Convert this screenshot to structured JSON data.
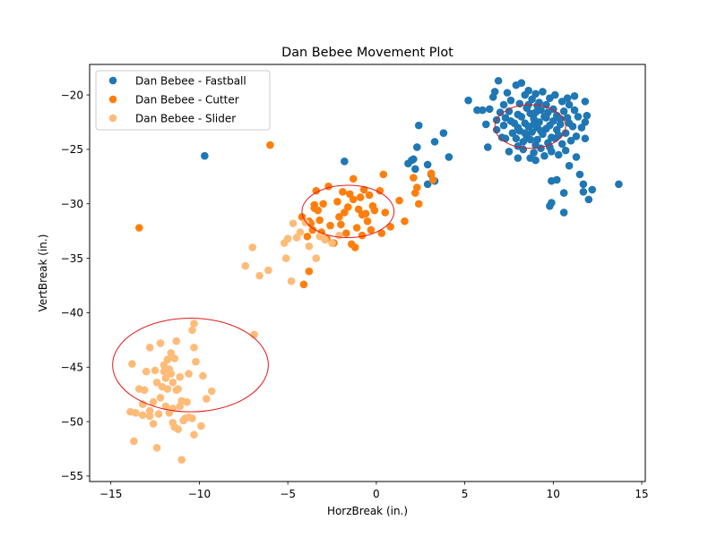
{
  "chart_data": {
    "type": "scatter",
    "title": "Dan Bebee Movement Plot",
    "xlabel": "HorzBreak (in.)",
    "ylabel": "VertBreak (in.)",
    "xlim": [
      -16.2,
      15.2
    ],
    "ylim": [
      -55.5,
      -17.2
    ],
    "xticks": [
      -15,
      -10,
      -5,
      0,
      5,
      10,
      15
    ],
    "yticks": [
      -55,
      -50,
      -45,
      -40,
      -35,
      -30,
      -25,
      -20
    ],
    "grid": false,
    "legend": "top-left",
    "series": [
      {
        "name": "Dan Bebee - Fastball",
        "color": "#1f77b4",
        "points": [
          [
            -9.7,
            -25.6
          ],
          [
            -1.8,
            -26.1
          ],
          [
            1.8,
            -26.3
          ],
          [
            2.0,
            -26.0
          ],
          [
            2.2,
            -26.8
          ],
          [
            2.1,
            -25.9
          ],
          [
            2.3,
            -24.8
          ],
          [
            2.4,
            -22.8
          ],
          [
            2.9,
            -26.4
          ],
          [
            2.9,
            -28.2
          ],
          [
            3.1,
            -27.3
          ],
          [
            3.3,
            -24.3
          ],
          [
            3.3,
            -27.9
          ],
          [
            3.8,
            -23.5
          ],
          [
            4.1,
            -25.7
          ],
          [
            5.2,
            -20.5
          ],
          [
            5.7,
            -21.4
          ],
          [
            6.0,
            -21.4
          ],
          [
            6.2,
            -22.7
          ],
          [
            6.3,
            -24.8
          ],
          [
            6.4,
            -21.3
          ],
          [
            6.6,
            -20.2
          ],
          [
            6.7,
            -19.7
          ],
          [
            6.8,
            -22.3
          ],
          [
            6.9,
            -18.7
          ],
          [
            7.0,
            -21.6
          ],
          [
            7.1,
            -23.9
          ],
          [
            7.2,
            -20.9
          ],
          [
            7.3,
            -22.1
          ],
          [
            7.3,
            -24.0
          ],
          [
            7.4,
            -19.8
          ],
          [
            7.5,
            -25.2
          ],
          [
            7.5,
            -21.5
          ],
          [
            7.6,
            -20.5
          ],
          [
            7.7,
            -23.5
          ],
          [
            7.8,
            -22.6
          ],
          [
            7.9,
            -19.1
          ],
          [
            8.0,
            -24.7
          ],
          [
            8.0,
            -21.8
          ],
          [
            8.1,
            -20.8
          ],
          [
            8.1,
            -23.3
          ],
          [
            8.2,
            -18.9
          ],
          [
            8.2,
            -22.0
          ],
          [
            8.3,
            -25.0
          ],
          [
            8.3,
            -24.3
          ],
          [
            8.4,
            -20.0
          ],
          [
            8.4,
            -22.6
          ],
          [
            8.5,
            -23.8
          ],
          [
            8.5,
            -21.2
          ],
          [
            8.6,
            -19.6
          ],
          [
            8.6,
            -22.9
          ],
          [
            8.7,
            -24.1
          ],
          [
            8.7,
            -21.7
          ],
          [
            8.8,
            -20.4
          ],
          [
            8.8,
            -23.4
          ],
          [
            8.9,
            -25.3
          ],
          [
            8.9,
            -22.2
          ],
          [
            9.0,
            -19.9
          ],
          [
            9.0,
            -24.6
          ],
          [
            9.1,
            -21.0
          ],
          [
            9.1,
            -23.0
          ],
          [
            9.2,
            -20.7
          ],
          [
            9.2,
            -22.5
          ],
          [
            9.3,
            -24.9
          ],
          [
            9.3,
            -21.4
          ],
          [
            9.4,
            -19.7
          ],
          [
            9.4,
            -23.6
          ],
          [
            9.5,
            -22.0
          ],
          [
            9.5,
            -25.6
          ],
          [
            9.6,
            -20.9
          ],
          [
            9.6,
            -23.1
          ],
          [
            9.7,
            -24.4
          ],
          [
            9.7,
            -21.6
          ],
          [
            9.8,
            -20.3
          ],
          [
            9.8,
            -22.8
          ],
          [
            9.9,
            -23.9
          ],
          [
            9.9,
            -25.2
          ],
          [
            10.0,
            -21.3
          ],
          [
            10.0,
            -22.4
          ],
          [
            10.1,
            -20.0
          ],
          [
            10.1,
            -24.0
          ],
          [
            10.2,
            -23.2
          ],
          [
            10.2,
            -21.9
          ],
          [
            10.3,
            -25.5
          ],
          [
            10.4,
            -22.7
          ],
          [
            10.5,
            -20.6
          ],
          [
            10.5,
            -24.5
          ],
          [
            10.6,
            -21.5
          ],
          [
            10.7,
            -23.5
          ],
          [
            10.7,
            -25.1
          ],
          [
            10.8,
            -22.1
          ],
          [
            10.9,
            -20.9
          ],
          [
            11.0,
            -24.2
          ],
          [
            11.1,
            -22.9
          ],
          [
            11.2,
            -21.4
          ],
          [
            11.3,
            -23.8
          ],
          [
            11.3,
            -25.7
          ],
          [
            11.4,
            -22.0
          ],
          [
            11.8,
            -22.5
          ],
          [
            11.8,
            -24.0
          ],
          [
            11.8,
            -20.6
          ],
          [
            11.6,
            -23.0
          ],
          [
            11.9,
            -21.9
          ],
          [
            9.0,
            -26.0
          ],
          [
            8.0,
            -25.8
          ],
          [
            10.9,
            -26.5
          ],
          [
            11.5,
            -27.3
          ],
          [
            11.7,
            -28.2
          ],
          [
            12.2,
            -28.7
          ],
          [
            9.9,
            -27.9
          ],
          [
            10.2,
            -27.8
          ],
          [
            11.7,
            -28.9
          ],
          [
            12.0,
            -29.6
          ],
          [
            9.9,
            -29.9
          ],
          [
            9.8,
            -30.2
          ],
          [
            10.6,
            -29.0
          ],
          [
            10.6,
            -30.8
          ],
          [
            13.7,
            -28.2
          ],
          [
            9.6,
            -22.1
          ],
          [
            8.9,
            -22.7
          ],
          [
            9.3,
            -23.3
          ],
          [
            8.4,
            -23.5
          ],
          [
            9.1,
            -24.1
          ],
          [
            10.4,
            -22.2
          ],
          [
            8.0,
            -23.0
          ],
          [
            7.6,
            -22.4
          ],
          [
            9.0,
            -21.6
          ],
          [
            8.7,
            -25.8
          ],
          [
            7.9,
            -24.0
          ],
          [
            10.8,
            -20.3
          ],
          [
            6.8,
            -23.2
          ],
          [
            7.2,
            -22.8
          ],
          [
            11.2,
            -20.1
          ],
          [
            10.9,
            -22.6
          ],
          [
            8.6,
            -20.9
          ],
          [
            9.8,
            -24.8
          ],
          [
            10.3,
            -23.7
          ]
        ]
      },
      {
        "name": "Dan Bebee - Cutter",
        "color": "#ff7f0e",
        "points": [
          [
            -13.4,
            -32.2
          ],
          [
            -6.0,
            -24.6
          ],
          [
            -4.1,
            -37.4
          ],
          [
            -3.8,
            -36.2
          ],
          [
            -4.2,
            -31.2
          ],
          [
            -3.9,
            -33.0
          ],
          [
            -3.8,
            -31.6
          ],
          [
            -3.6,
            -32.4
          ],
          [
            -3.5,
            -30.1
          ],
          [
            -3.4,
            -28.8
          ],
          [
            -3.3,
            -30.6
          ],
          [
            -3.2,
            -31.5
          ],
          [
            -3.1,
            -32.6
          ],
          [
            -3.0,
            -30.0
          ],
          [
            -2.8,
            -33.2
          ],
          [
            -2.7,
            -28.4
          ],
          [
            -2.6,
            -32.0
          ],
          [
            -2.4,
            -33.6
          ],
          [
            -2.2,
            -29.8
          ],
          [
            -2.0,
            -31.9
          ],
          [
            -1.9,
            -28.9
          ],
          [
            -1.8,
            -30.8
          ],
          [
            -1.7,
            -32.7
          ],
          [
            -1.6,
            -30.3
          ],
          [
            -1.5,
            -29.1
          ],
          [
            -1.4,
            -33.7
          ],
          [
            -1.3,
            -29.6
          ],
          [
            -1.2,
            -34.0
          ],
          [
            -1.1,
            -32.2
          ],
          [
            -1.0,
            -30.5
          ],
          [
            -0.9,
            -29.4
          ],
          [
            -0.8,
            -31.0
          ],
          [
            -0.7,
            -28.7
          ],
          [
            -0.6,
            -30.9
          ],
          [
            -0.5,
            -31.6
          ],
          [
            -0.4,
            -29.2
          ],
          [
            -0.3,
            -32.4
          ],
          [
            -0.2,
            -30.2
          ],
          [
            -0.1,
            -30.6
          ],
          [
            0.2,
            -28.8
          ],
          [
            0.3,
            -32.7
          ],
          [
            0.5,
            -30.8
          ],
          [
            0.8,
            -32.1
          ],
          [
            1.3,
            -29.7
          ],
          [
            1.6,
            -31.6
          ],
          [
            2.1,
            -27.6
          ],
          [
            2.2,
            -29.0
          ],
          [
            2.3,
            -28.5
          ],
          [
            2.4,
            -30.0
          ],
          [
            3.1,
            -27.2
          ],
          [
            3.2,
            -27.8
          ],
          [
            0.4,
            -27.3
          ],
          [
            -1.3,
            -27.7
          ],
          [
            -2.1,
            -31.2
          ],
          [
            -3.7,
            -31.8
          ],
          [
            -3.5,
            -30.4
          ],
          [
            -0.8,
            -32.9
          ]
        ]
      },
      {
        "name": "Dan Bebee - Slider",
        "color": "#ffbb78",
        "points": [
          [
            -7.4,
            -35.7
          ],
          [
            -7.0,
            -34.0
          ],
          [
            -6.6,
            -36.6
          ],
          [
            -6.1,
            -36.1
          ],
          [
            -5.2,
            -33.6
          ],
          [
            -5.1,
            -35.0
          ],
          [
            -5.0,
            -33.2
          ],
          [
            -4.8,
            -37.1
          ],
          [
            -4.7,
            -31.8
          ],
          [
            -4.5,
            -33.1
          ],
          [
            -4.3,
            -32.6
          ],
          [
            -4.0,
            -31.7
          ],
          [
            -3.8,
            -33.9
          ],
          [
            -3.4,
            -35.0
          ],
          [
            -3.2,
            -33.0
          ],
          [
            -2.9,
            -33.3
          ],
          [
            -2.5,
            -33.6
          ],
          [
            -2.1,
            -32.9
          ],
          [
            -6.9,
            -42.0
          ],
          [
            -10.3,
            -41.0
          ],
          [
            -10.4,
            -41.6
          ],
          [
            -10.3,
            -43.2
          ],
          [
            -10.2,
            -44.5
          ],
          [
            -9.8,
            -45.8
          ],
          [
            -9.6,
            -47.9
          ],
          [
            -9.3,
            -47.2
          ],
          [
            -9.9,
            -50.4
          ],
          [
            -10.3,
            -51.2
          ],
          [
            -10.8,
            -49.7
          ],
          [
            -11.0,
            -48.1
          ],
          [
            -11.3,
            -47.1
          ],
          [
            -11.4,
            -50.5
          ],
          [
            -11.7,
            -49.2
          ],
          [
            -11.9,
            -46.0
          ],
          [
            -12.0,
            -45.4
          ],
          [
            -12.2,
            -42.8
          ],
          [
            -12.5,
            -45.3
          ],
          [
            -12.6,
            -48.2
          ],
          [
            -12.8,
            -49.0
          ],
          [
            -13.0,
            -45.4
          ],
          [
            -13.4,
            -47.0
          ],
          [
            -13.6,
            -49.2
          ],
          [
            -13.7,
            -51.8
          ],
          [
            -13.8,
            -44.7
          ],
          [
            -12.4,
            -52.4
          ],
          [
            -11.0,
            -53.5
          ],
          [
            -11.2,
            -50.7
          ],
          [
            -11.6,
            -43.7
          ],
          [
            -11.8,
            -44.3
          ],
          [
            -12.1,
            -46.8
          ],
          [
            -12.3,
            -49.3
          ],
          [
            -12.8,
            -43.2
          ],
          [
            -13.2,
            -49.4
          ],
          [
            -13.2,
            -48.4
          ],
          [
            -11.5,
            -48.8
          ],
          [
            -10.6,
            -49.6
          ],
          [
            -10.7,
            -48.2
          ],
          [
            -11.1,
            -45.9
          ],
          [
            -11.4,
            -44.2
          ],
          [
            -11.6,
            -45.6
          ],
          [
            -11.5,
            -46.4
          ],
          [
            -11.8,
            -47.0
          ],
          [
            -11.9,
            -48.6
          ],
          [
            -12.2,
            -47.8
          ],
          [
            -12.6,
            -50.2
          ],
          [
            -12.8,
            -49.5
          ],
          [
            -13.1,
            -47.1
          ],
          [
            -11.1,
            -48.6
          ],
          [
            -10.4,
            -49.7
          ],
          [
            -10.6,
            -45.6
          ],
          [
            -11.3,
            -42.6
          ],
          [
            -11.7,
            -45.2
          ],
          [
            -11.2,
            -47.0
          ],
          [
            -12.0,
            -44.8
          ],
          [
            -12.4,
            -46.4
          ],
          [
            -10.9,
            -49.9
          ],
          [
            -11.5,
            -50.1
          ],
          [
            -13.9,
            -49.1
          ]
        ]
      }
    ],
    "annotations": [
      {
        "shape": "ellipse",
        "color": "#e31a1c",
        "center": [
          8.7,
          -22.9
        ],
        "rx": 2.0,
        "ry": 2.0
      },
      {
        "shape": "ellipse",
        "color": "#e31a1c",
        "center": [
          -1.6,
          -30.7
        ],
        "rx": 2.6,
        "ry": 2.4
      },
      {
        "shape": "ellipse",
        "color": "#e31a1c",
        "center": [
          -10.5,
          -44.8
        ],
        "rx": 4.4,
        "ry": 4.3
      }
    ]
  }
}
